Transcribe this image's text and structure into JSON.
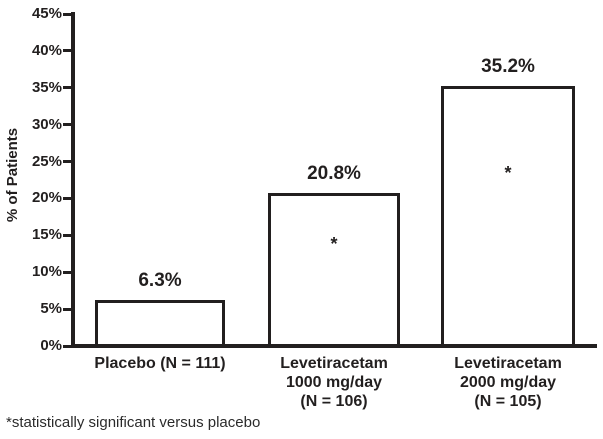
{
  "chart_data": {
    "type": "bar",
    "title": "",
    "xlabel": "",
    "ylabel": "% of Patients",
    "ylim": [
      0,
      45
    ],
    "ytick_step": 5,
    "ytick_labels": [
      "0%",
      "5%",
      "10%",
      "15%",
      "20%",
      "25%",
      "30%",
      "35%",
      "40%",
      "45%"
    ],
    "categories": [
      "Placebo (N = 111)",
      "Levetiracetam 1000 mg/day (N = 106)",
      "Levetiracetam 2000 mg/day (N = 105)"
    ],
    "values": [
      6.3,
      20.8,
      35.2
    ],
    "bars": [
      {
        "category_lines": [
          "Placebo (N = 111)"
        ],
        "value": 6.3,
        "value_label": "6.3%",
        "significant": false
      },
      {
        "category_lines": [
          "Levetiracetam",
          "1000 mg/day",
          "(N = 106)"
        ],
        "value": 20.8,
        "value_label": "20.8%",
        "significant": true
      },
      {
        "category_lines": [
          "Levetiracetam",
          "2000 mg/day",
          "(N = 105)"
        ],
        "value": 35.2,
        "value_label": "35.2%",
        "significant": true
      }
    ],
    "significance_marker": "*",
    "footnote": "*statistically significant versus placebo",
    "grid": false,
    "legend": false,
    "colors": {
      "bar_fill": "#ffffff",
      "bar_border": "#221f1f",
      "axis": "#221f1f",
      "text": "#221f1f"
    }
  }
}
